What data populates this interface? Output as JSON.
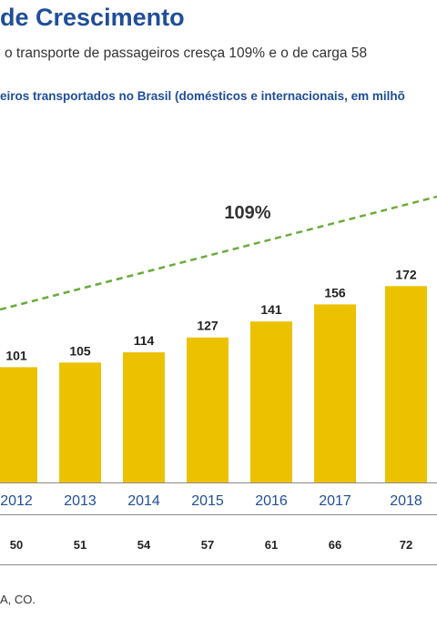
{
  "header": {
    "title": "de Crescimento",
    "subtitle": "o transporte de passageiros cresça 109% e o de carga 58"
  },
  "source_text": "A, CO.",
  "colors": {
    "bar": "#ecc200",
    "trend": "#6aab3a",
    "title": "#1f4e9a",
    "axis": "#8a8a8a"
  },
  "chart_data": {
    "type": "bar",
    "title": "eiros transportados no Brasil (domésticos e internacionais, em milhõ",
    "categories": [
      "2012",
      "2013",
      "2014",
      "2015",
      "2016",
      "2017",
      "2018"
    ],
    "values": [
      101,
      105,
      114,
      127,
      141,
      156,
      172
    ],
    "second_row_values": [
      50,
      51,
      54,
      57,
      61,
      66,
      72
    ],
    "growth_annotation": "109%",
    "trend_line": "dashed",
    "grid": false
  }
}
